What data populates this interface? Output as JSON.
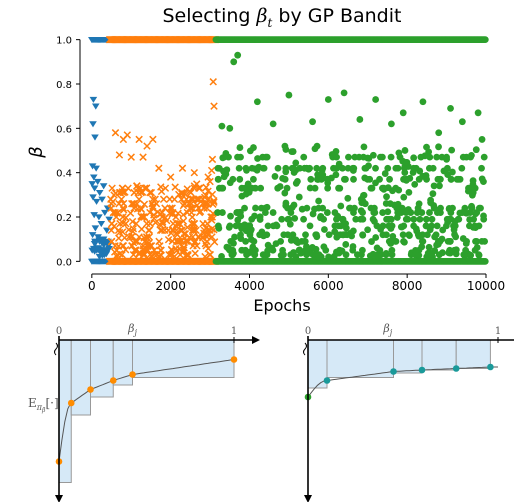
{
  "chart_data": [
    {
      "type": "scatter",
      "title": "Selecting β_t by GP Bandit",
      "title_main": "Selecting ",
      "title_sym": "β",
      "title_sub": "t",
      "title_tail": " by GP Bandit",
      "xlabel": "Epochs",
      "ylabel": "β",
      "xlim": [
        -300,
        10000
      ],
      "ylim": [
        -0.03,
        1.03
      ],
      "x_ticks": [
        0,
        2000,
        4000,
        6000,
        8000,
        10000
      ],
      "x_tick_labels": [
        "0",
        "2000",
        "4000",
        "6000",
        "8000",
        "10000"
      ],
      "y_ticks": [
        0.0,
        0.2,
        0.4,
        0.6,
        0.8,
        1.0
      ],
      "y_tick_labels": [
        "0.0",
        "0.2",
        "0.4",
        "0.6",
        "0.8",
        "1.0"
      ],
      "grid": false,
      "legend": "none",
      "series": [
        {
          "marker": "triangle-down",
          "color": "#1f77b4",
          "x_range": [
            0,
            450
          ],
          "highlighted_points": [
            [
              40,
              0.73
            ],
            [
              100,
              0.7
            ],
            [
              30,
              0.62
            ],
            [
              80,
              0.56
            ],
            [
              20,
              0.43
            ],
            [
              110,
              0.42
            ],
            [
              50,
              0.38
            ],
            [
              150,
              0.36
            ],
            [
              10,
              0.35
            ],
            [
              300,
              0.34
            ],
            [
              70,
              0.33
            ],
            [
              200,
              0.31
            ],
            [
              30,
              0.29
            ],
            [
              260,
              0.28
            ],
            [
              120,
              0.27
            ],
            [
              400,
              0.24
            ],
            [
              330,
              0.22
            ],
            [
              60,
              0.21
            ],
            [
              180,
              0.2
            ],
            [
              440,
              0.19
            ],
            [
              240,
              0.17
            ],
            [
              90,
              0.15
            ],
            [
              380,
              0.14
            ],
            [
              20,
              0.12
            ],
            [
              160,
              0.11
            ],
            [
              300,
              0.1
            ],
            [
              70,
              0.08
            ],
            [
              420,
              0.07
            ],
            [
              130,
              0.06
            ],
            [
              10,
              0.05
            ],
            [
              230,
              0.04
            ]
          ],
          "bottom_band": [
            0.0,
            0.1
          ],
          "n_bottom": 30,
          "band_points": [
            [
              0,
              1.0
            ],
            [
              450,
              1.0
            ],
            [
              0,
              0.0
            ],
            [
              450,
              0.0
            ]
          ]
        },
        {
          "marker": "x",
          "color": "#ff7f0e",
          "x_range": [
            450,
            3150
          ],
          "highlighted_points": [
            [
              3080,
              0.81
            ],
            [
              3100,
              0.7
            ],
            [
              3060,
              0.46
            ],
            [
              3040,
              0.41
            ],
            [
              2950,
              0.38
            ],
            [
              600,
              0.58
            ],
            [
              900,
              0.57
            ],
            [
              1200,
              0.55
            ],
            [
              1550,
              0.55
            ],
            [
              800,
              0.55
            ],
            [
              1400,
              0.52
            ],
            [
              700,
              0.48
            ],
            [
              1000,
              0.47
            ],
            [
              1300,
              0.47
            ],
            [
              1700,
              0.42
            ],
            [
              2300,
              0.42
            ],
            [
              2600,
              0.4
            ],
            [
              2000,
              0.38
            ],
            [
              3000,
              0.36
            ]
          ],
          "stripe_levels": [
            0.28,
            0.31,
            0.33,
            0.26,
            0.22,
            0.2,
            0.17,
            0.14,
            0.11,
            0.09,
            0.07,
            0.05,
            0.03,
            0.24
          ],
          "n_random": 320,
          "band_points": [
            [
              450,
              1.0
            ],
            [
              3150,
              1.0
            ],
            [
              450,
              0.0
            ],
            [
              3150,
              0.0
            ]
          ]
        },
        {
          "marker": "circle",
          "color": "#2ca02c",
          "x_range": [
            3150,
            10000
          ],
          "highlighted_points": [
            [
              3600,
              0.9
            ],
            [
              3700,
              0.93
            ],
            [
              5000,
              0.75
            ],
            [
              6000,
              0.73
            ],
            [
              6400,
              0.76
            ],
            [
              7200,
              0.73
            ],
            [
              8400,
              0.72
            ],
            [
              4200,
              0.72
            ],
            [
              9100,
              0.69
            ],
            [
              9800,
              0.67
            ],
            [
              3300,
              0.61
            ],
            [
              4600,
              0.62
            ],
            [
              5600,
              0.63
            ],
            [
              7600,
              0.62
            ],
            [
              8800,
              0.58
            ],
            [
              9900,
              0.55
            ],
            [
              3500,
              0.6
            ],
            [
              6800,
              0.64
            ],
            [
              7900,
              0.67
            ],
            [
              9400,
              0.63
            ]
          ],
          "stripe_levels": [
            0.47,
            0.42,
            0.37,
            0.33,
            0.24,
            0.22,
            0.19,
            0.16,
            0.12,
            0.09,
            0.05,
            0.03
          ],
          "n_random": 620,
          "band_points": [
            [
              3150,
              1.0
            ],
            [
              10000,
              1.0
            ],
            [
              3150,
              0.0
            ],
            [
              10000,
              0.0
            ]
          ]
        }
      ]
    },
    {
      "type": "line",
      "description_axis_top_label": "β_j",
      "x_axis_label_main": "β",
      "x_axis_label_sub": "j",
      "x_ticks": [
        "0",
        "1"
      ],
      "ylabel_main": "E",
      "ylabel_sub": "π",
      "ylabel_subsub": "β",
      "ylabel_tail": "[·]",
      "curve_color": "#555555",
      "step_fill": "#d6e9f7",
      "step_stroke": "#999999",
      "marker_color": "#ff8c00",
      "start_marker_color": "#ff8c00",
      "ylim": [
        -1.0,
        0.0
      ],
      "xlim": [
        0.0,
        1.0
      ],
      "points": [
        [
          0.0,
          -0.81
        ],
        [
          0.07,
          -0.42
        ],
        [
          0.18,
          -0.33
        ],
        [
          0.31,
          -0.27
        ],
        [
          0.42,
          -0.23
        ],
        [
          1.0,
          -0.13
        ]
      ],
      "step_bottoms": [
        -0.95,
        -0.5,
        -0.38,
        -0.3,
        -0.25,
        -0.16
      ]
    },
    {
      "type": "line",
      "x_axis_label_main": "β",
      "x_axis_label_sub": "j",
      "x_ticks": [
        "0",
        "1"
      ],
      "curve_color": "#555555",
      "step_fill": "#d6e9f7",
      "step_stroke": "#999999",
      "marker_color": "#1a9a9a",
      "start_marker_color": "#2ca02c",
      "ylim": [
        -1.0,
        0.0
      ],
      "xlim": [
        0.0,
        1.0
      ],
      "points": [
        [
          0.0,
          -0.38
        ],
        [
          0.1,
          -0.27
        ],
        [
          0.45,
          -0.21
        ],
        [
          0.6,
          -0.2
        ],
        [
          0.78,
          -0.19
        ],
        [
          0.96,
          -0.18
        ]
      ],
      "step_bottoms": [
        -0.32,
        -0.25,
        -0.22,
        -0.2,
        -0.19,
        -0.18
      ]
    }
  ]
}
